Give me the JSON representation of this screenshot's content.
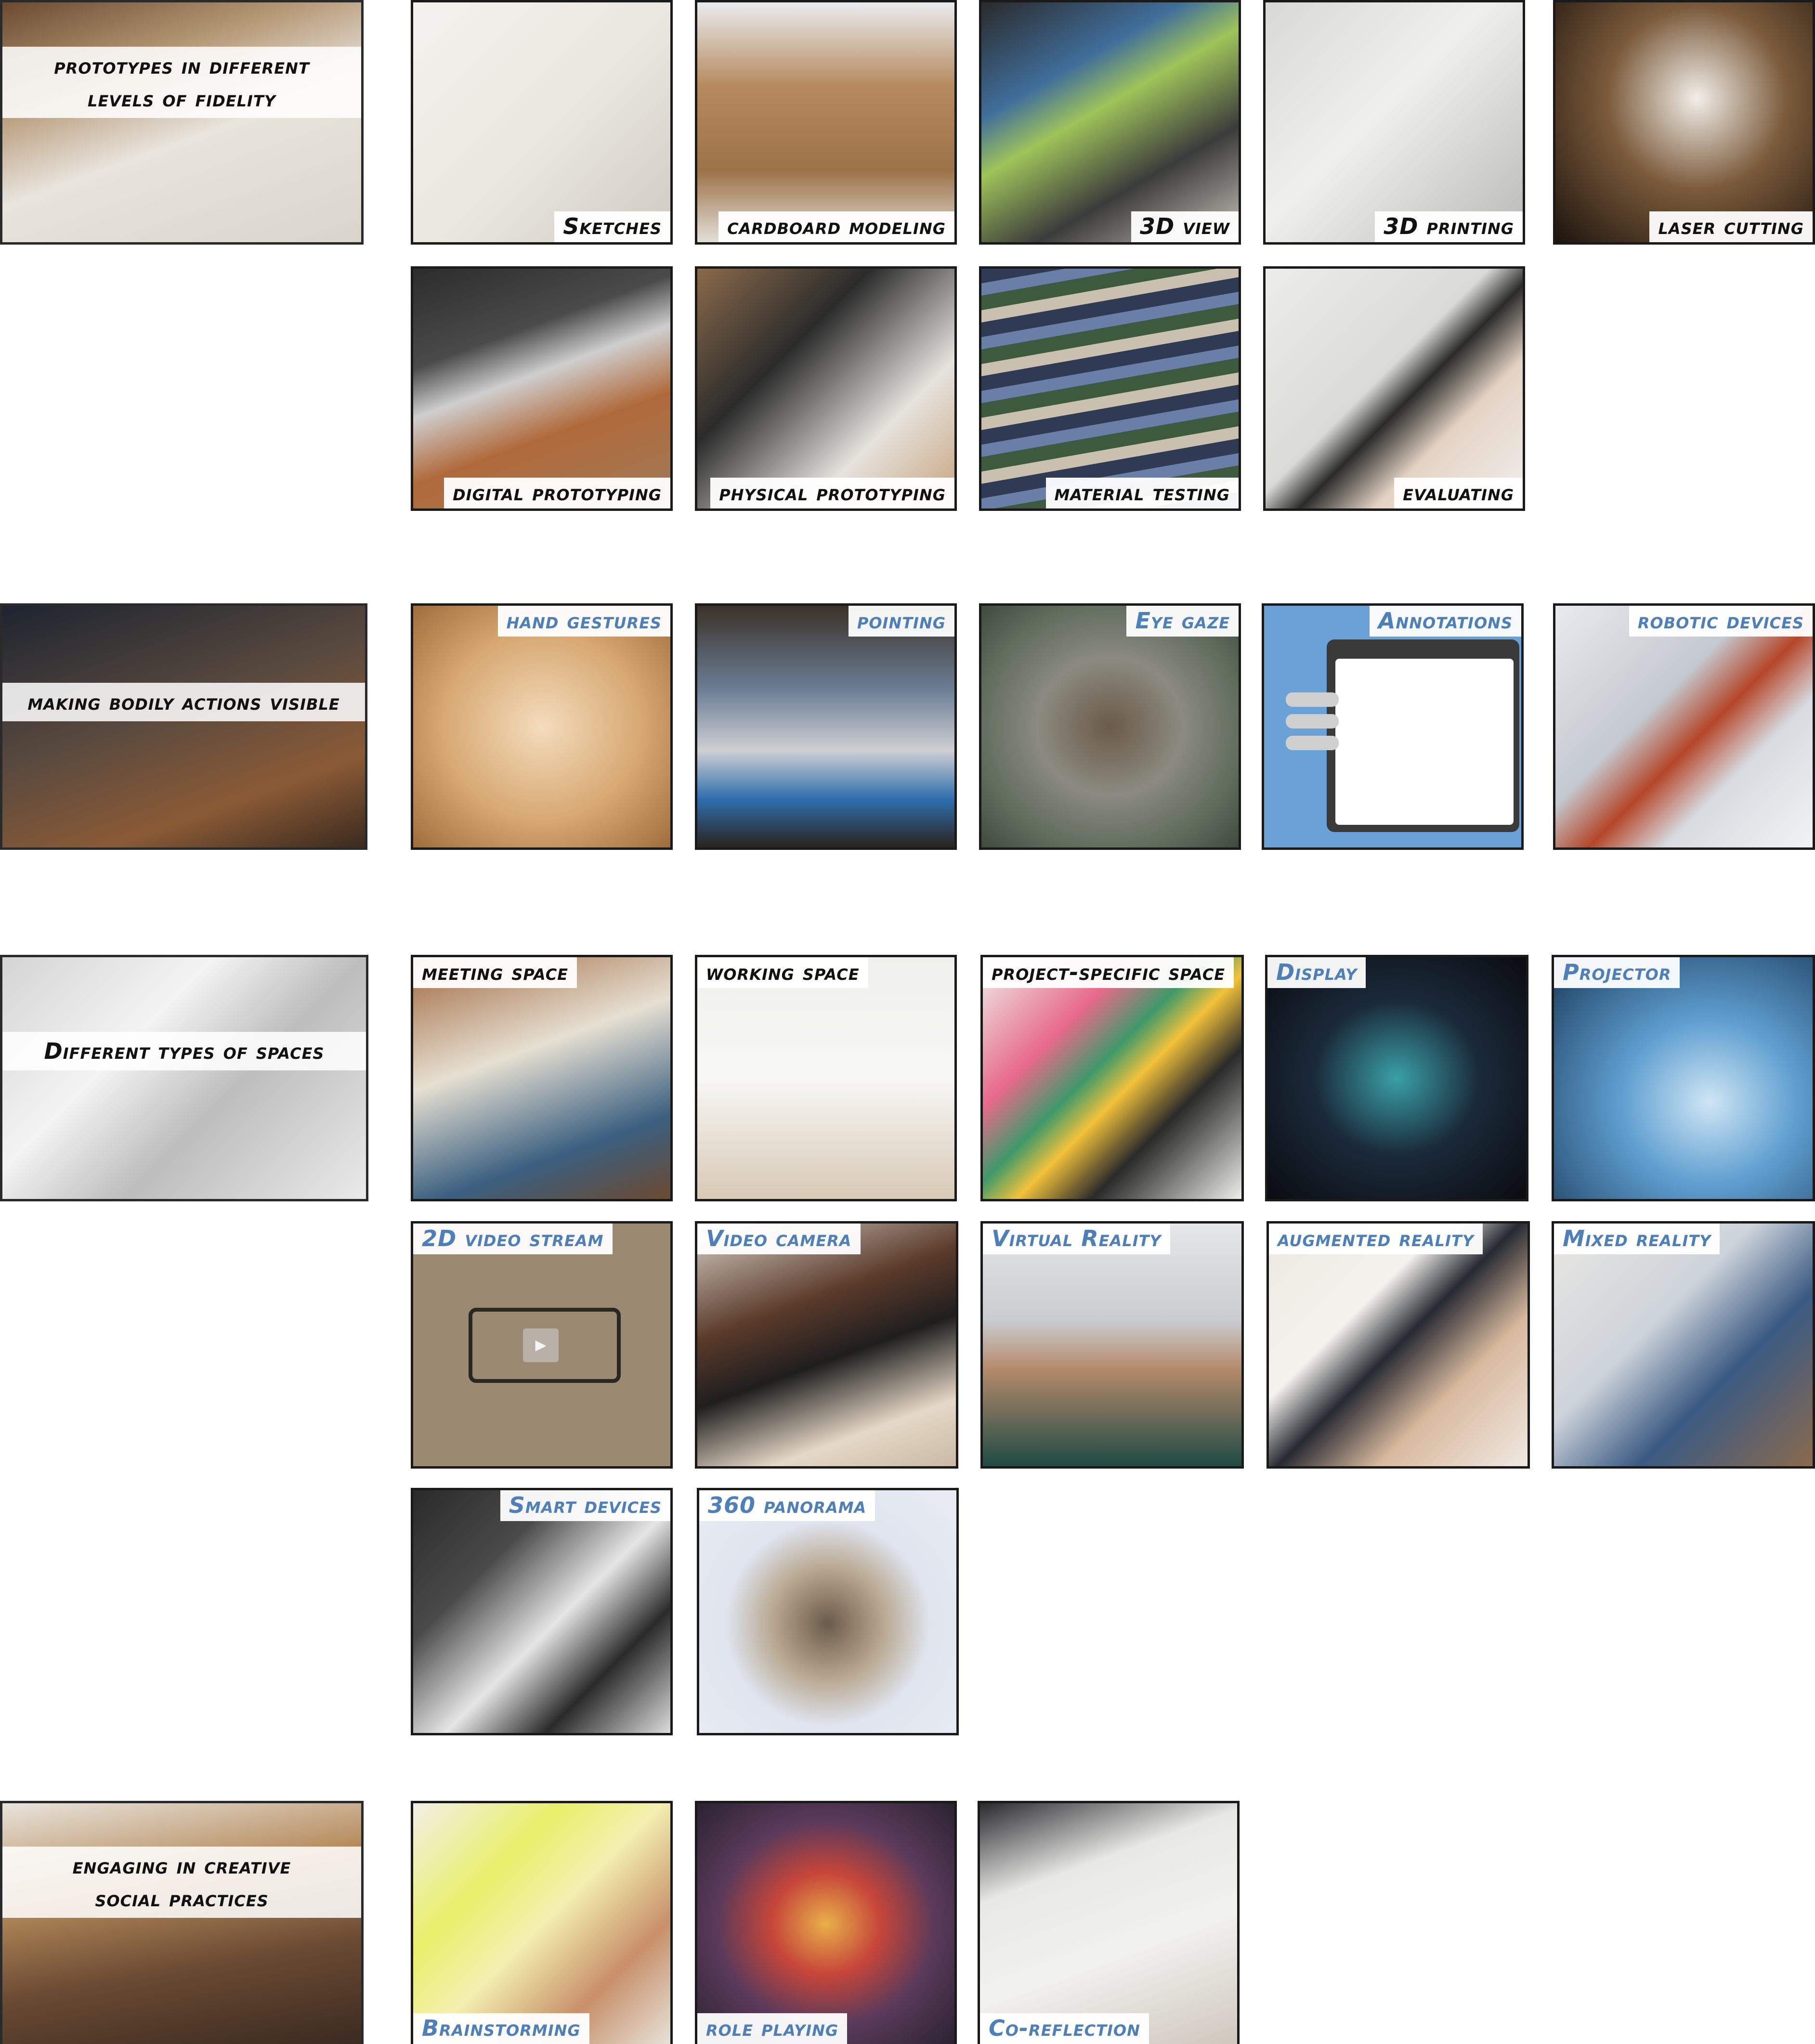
{
  "sections": [
    {
      "title": "prototypes in different\nlevels of fidelity",
      "tiles": [
        "Sketches",
        "cardboard modeling",
        "3D view",
        "3D printing",
        "laser cutting",
        "digital prototyping",
        "physical prototyping",
        "material testing",
        "evaluating"
      ]
    },
    {
      "title": "making bodily actions visible",
      "tiles": [
        "hand gestures",
        "pointing",
        "Eye gaze",
        "Annotations",
        "robotic devices"
      ]
    },
    {
      "title": "Different types of spaces",
      "tiles": [
        "meeting space",
        "working space",
        "project-specific space",
        "Display",
        "Projector",
        "2D video stream",
        "Video camera",
        "Virtual Reality",
        "augmented reality",
        "Mixed reality",
        "Smart devices",
        "360 panorama"
      ]
    },
    {
      "title": "engaging in creative\nsocial practices",
      "tiles": [
        "Brainstorming",
        "role playing",
        "Co-reflection"
      ]
    }
  ],
  "colors": {
    "label_dark": "#111111",
    "label_blue": "#4f7fb7",
    "border": "#1a1a1a"
  }
}
